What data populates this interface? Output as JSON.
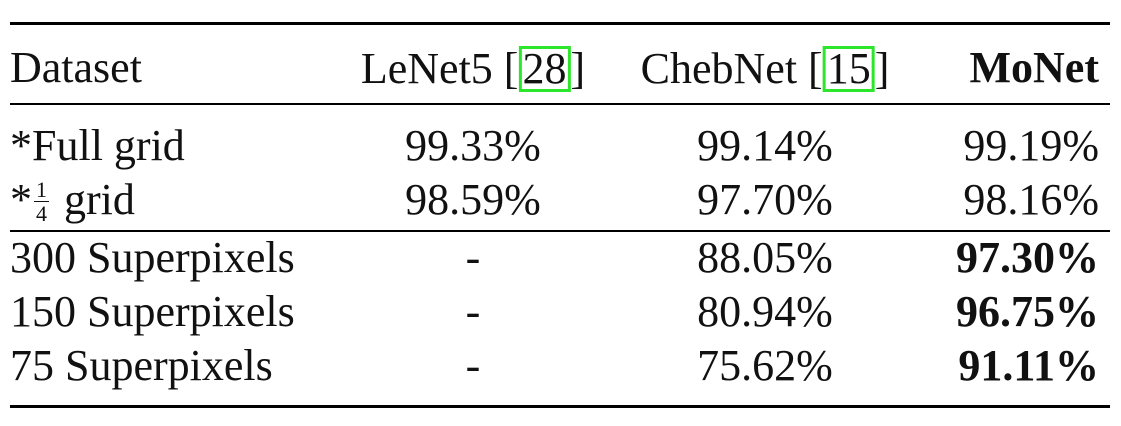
{
  "header": {
    "dataset": "Dataset",
    "lenet": {
      "name": "LeNet5 [",
      "ref": "28",
      "close": "]"
    },
    "chebnet": {
      "name": "ChebNet [",
      "ref": "15",
      "close": "]"
    },
    "monet": "MoNet"
  },
  "rows": [
    {
      "dataset": "*Full grid",
      "lenet": "99.33%",
      "chebnet": "99.14%",
      "monet": "99.19%",
      "monet_bold": false
    },
    {
      "dataset_prefix": "*",
      "dataset_frac_num": "1",
      "dataset_frac_den": "4",
      "dataset_suffix": "grid",
      "lenet": "98.59%",
      "chebnet": "97.70%",
      "monet": "98.16%",
      "monet_bold": false
    },
    {
      "dataset": "300 Superpixels",
      "lenet": "-",
      "chebnet": "88.05%",
      "monet": "97.30%",
      "monet_bold": true
    },
    {
      "dataset": "150 Superpixels",
      "lenet": "-",
      "chebnet": "80.94%",
      "monet": "96.75%",
      "monet_bold": true
    },
    {
      "dataset": "75 Superpixels",
      "lenet": "-",
      "chebnet": "75.62%",
      "monet": "91.11%",
      "monet_bold": true
    }
  ],
  "colors": {
    "citation_box": "#2ce62c",
    "text": "#111111"
  }
}
